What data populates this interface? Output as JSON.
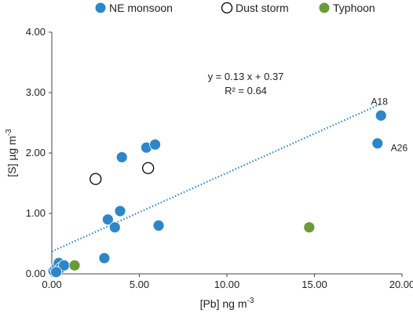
{
  "chart_data": {
    "type": "scatter",
    "title": "",
    "xlabel": "[Pb] ng m",
    "xlabel_sup": "-3",
    "ylabel": "[S] µg m",
    "ylabel_sup": "-3",
    "xlim": [
      0,
      20
    ],
    "ylim": [
      0,
      4
    ],
    "xticks": [
      "0.00",
      "5.00",
      "10.00",
      "15.00",
      "20.00"
    ],
    "yticks": [
      "0.00",
      "1.00",
      "2.00",
      "3.00",
      "4.00"
    ],
    "grid": false,
    "legend_position": "top",
    "series": [
      {
        "name": "NE monsoon",
        "color": "#2E86C8",
        "marker": "filled-circle",
        "points": [
          {
            "x": 0.1,
            "y": 0.05
          },
          {
            "x": 0.2,
            "y": 0.08
          },
          {
            "x": 0.3,
            "y": 0.12
          },
          {
            "x": 0.4,
            "y": 0.18
          },
          {
            "x": 0.5,
            "y": 0.1
          },
          {
            "x": 0.7,
            "y": 0.14
          },
          {
            "x": 0.25,
            "y": 0.03
          },
          {
            "x": 3.0,
            "y": 0.26
          },
          {
            "x": 3.2,
            "y": 0.9
          },
          {
            "x": 3.6,
            "y": 0.77
          },
          {
            "x": 3.9,
            "y": 1.04
          },
          {
            "x": 4.0,
            "y": 1.93
          },
          {
            "x": 5.4,
            "y": 2.09
          },
          {
            "x": 5.9,
            "y": 2.14
          },
          {
            "x": 6.1,
            "y": 0.8
          },
          {
            "x": 18.8,
            "y": 2.62
          },
          {
            "x": 18.6,
            "y": 2.16
          }
        ]
      },
      {
        "name": "Dust storm",
        "color": "#000000",
        "marker": "open-circle",
        "points": [
          {
            "x": 2.5,
            "y": 1.57
          },
          {
            "x": 5.5,
            "y": 1.75
          }
        ]
      },
      {
        "name": "Typhoon",
        "color": "#6A9A3A",
        "marker": "filled-circle",
        "points": [
          {
            "x": 1.3,
            "y": 0.14
          },
          {
            "x": 14.7,
            "y": 0.77
          }
        ]
      }
    ],
    "trendline": {
      "slope": 0.13,
      "intercept": 0.37,
      "x_range": [
        0,
        18.8
      ],
      "color": "#2E86C8",
      "style": "dotted"
    },
    "equation": "y = 0.13 x + 0.37",
    "r_squared": "R² = 0.64",
    "point_labels": [
      {
        "text": "A18",
        "x": 18.8,
        "y": 2.62
      },
      {
        "text": "A26",
        "x": 18.6,
        "y": 2.16
      }
    ]
  }
}
